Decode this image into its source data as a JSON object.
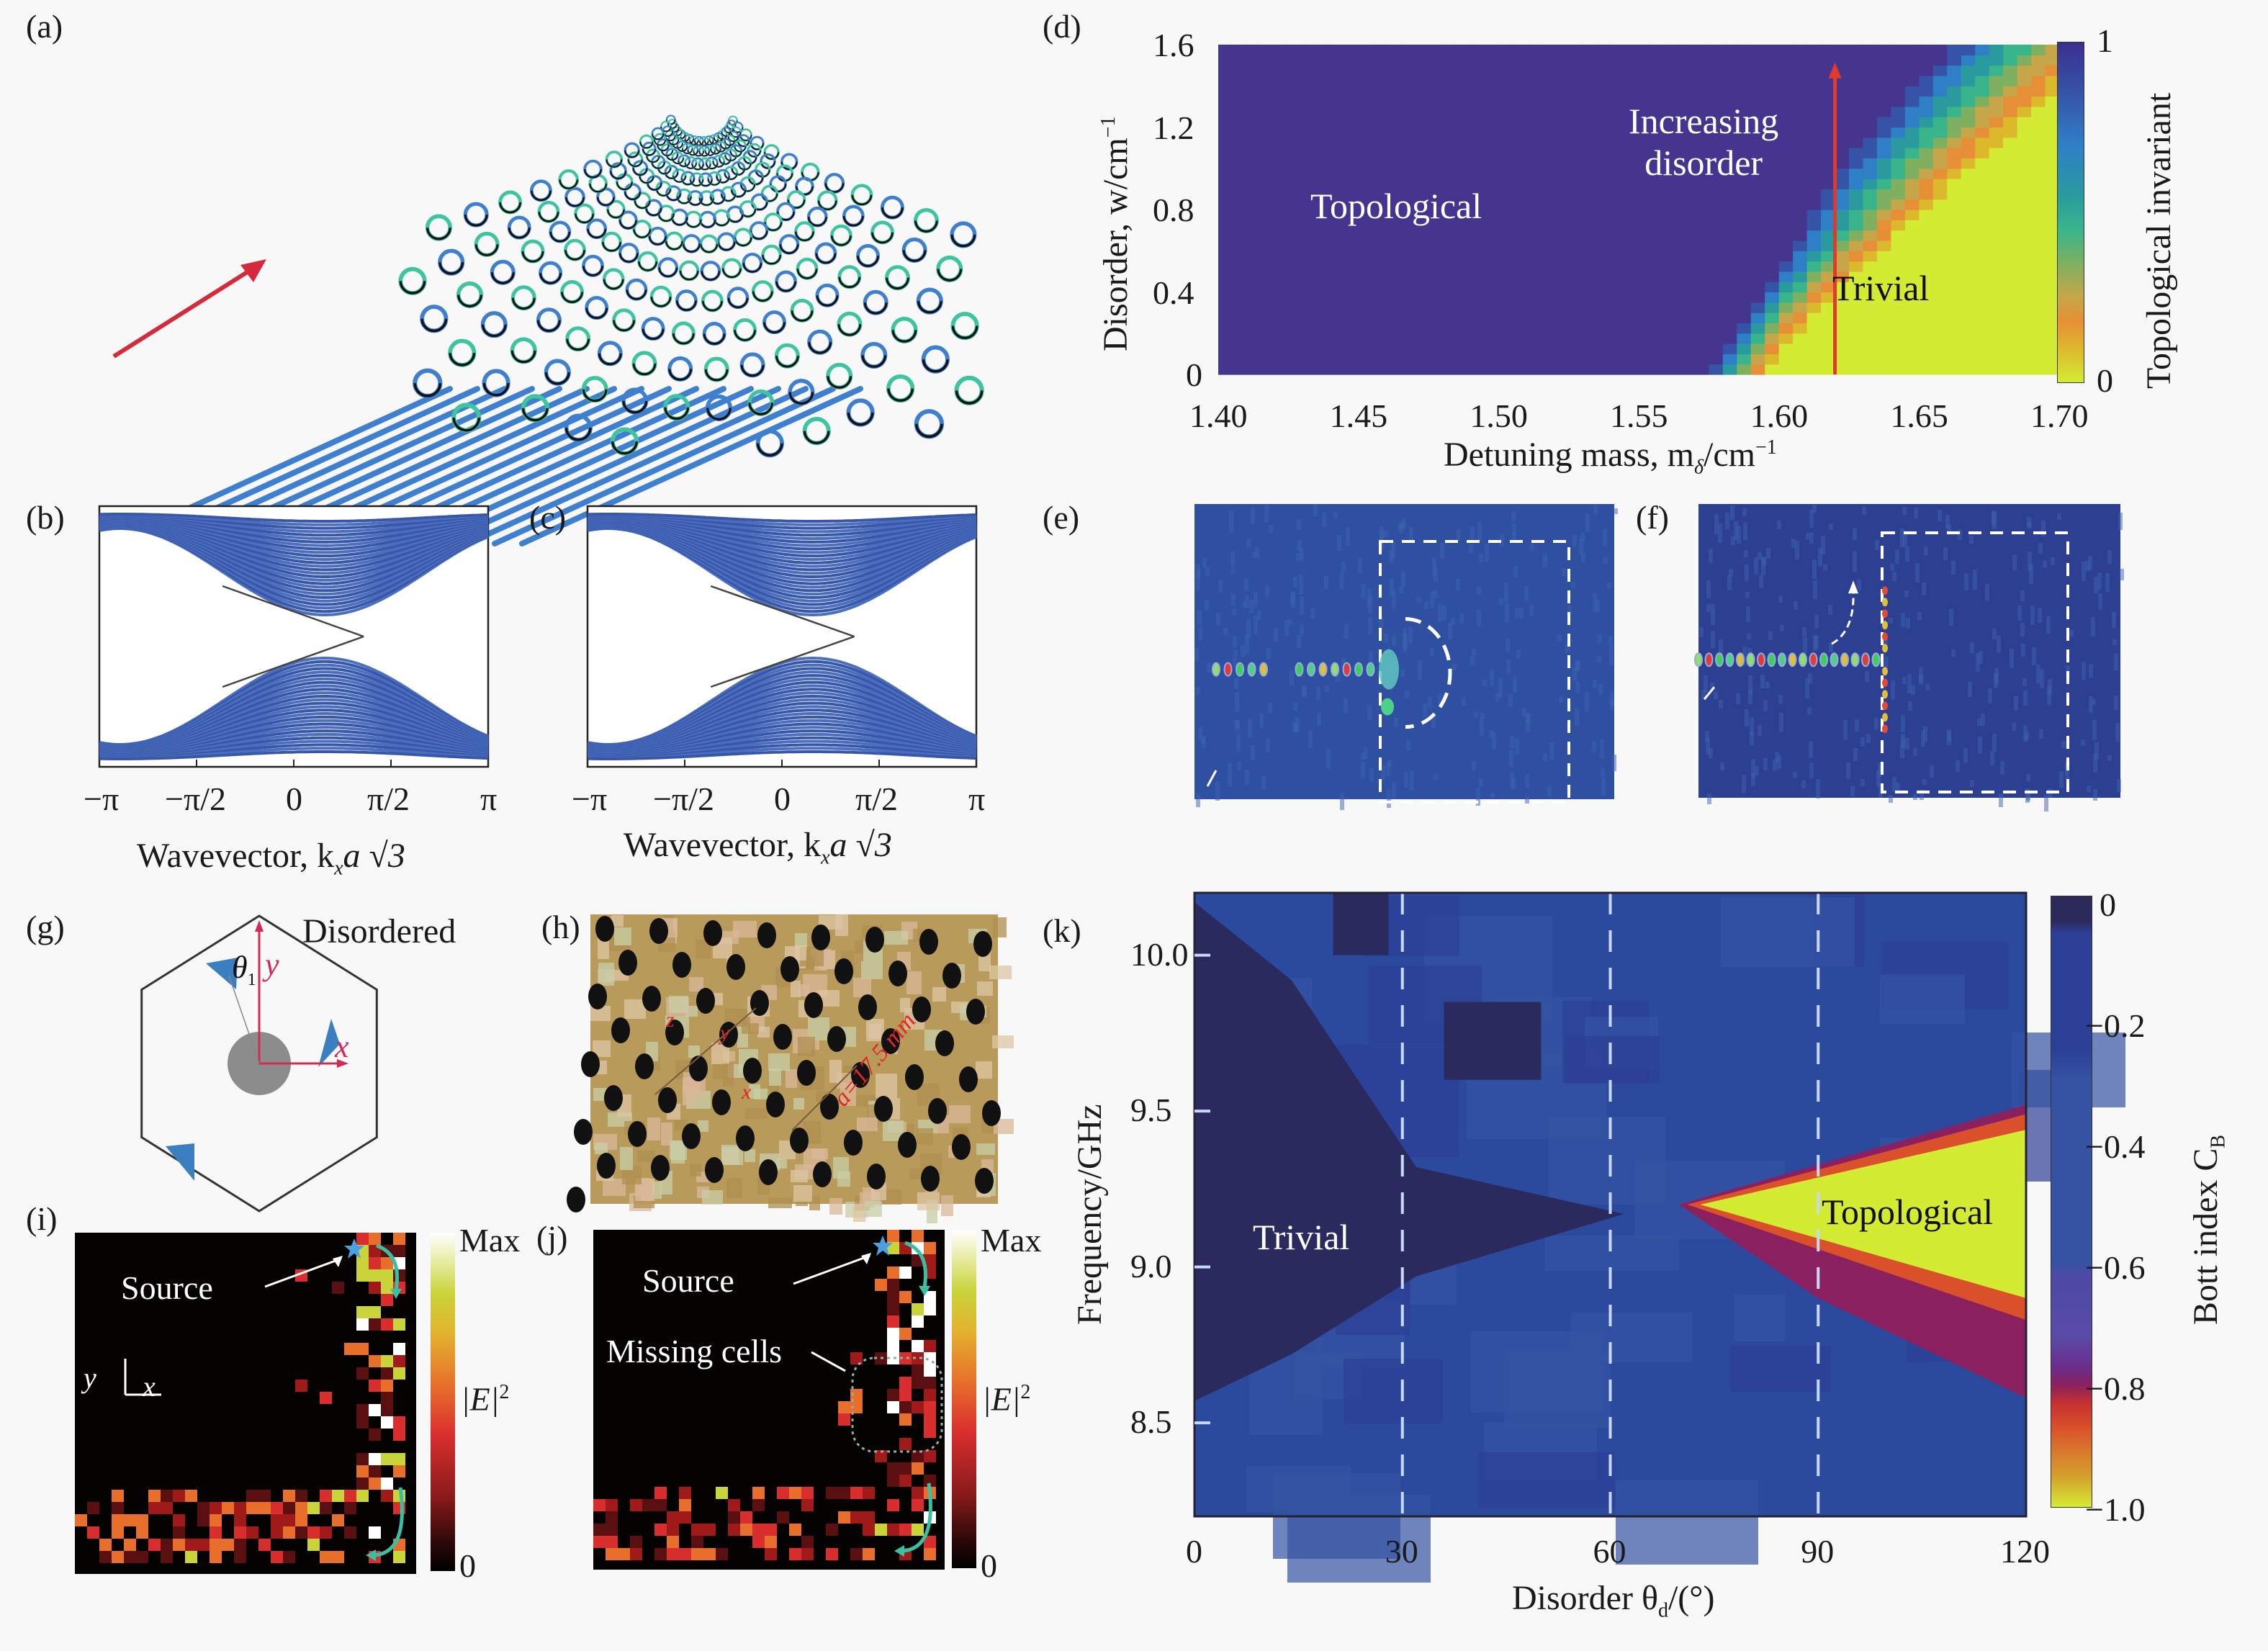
{
  "figure": {
    "panels": {
      "a": {
        "label": "(a)",
        "description": "3D helical waveguide array with red input arrow",
        "colors": {
          "helix_teal": "#3fc4a2",
          "helix_blue": "#3f7fd0",
          "input_highlight": "#e05a7a",
          "arrow": "#d42a3c"
        }
      },
      "b": {
        "label": "(b)",
        "xlabel": "Wavevector, k",
        "xlabel_sub": "x",
        "xlabel_tail": "a √3",
        "xticks": [
          "−π",
          "−π/2",
          "0",
          "π/2",
          "π"
        ]
      },
      "c": {
        "label": "(c)",
        "xlabel": "Wavevector, k",
        "xlabel_sub": "x",
        "xlabel_tail": "a √3",
        "xticks": [
          "−π",
          "−π/2",
          "0",
          "π/2",
          "π"
        ]
      },
      "d": {
        "label": "(d)",
        "xlabel": "Detuning mass, m",
        "xlabel_sub": "δ",
        "xlabel_tail": "/cm",
        "xlabel_sup": "−1",
        "ylabel": "Disorder, w/cm",
        "ylabel_sup": "−1",
        "xticks": [
          "1.40",
          "1.45",
          "1.50",
          "1.55",
          "1.60",
          "1.65",
          "1.70"
        ],
        "yticks": [
          "1.6",
          "1.2",
          "0.8",
          "0.4",
          "0"
        ],
        "colorbar": {
          "label": "Topological invariant",
          "max": "1",
          "min": "0"
        },
        "annotations": {
          "topological": "Topological",
          "increasing_1": "Increasing",
          "increasing_2": "disorder",
          "trivial": "Trivial"
        }
      },
      "e": {
        "label": "(e)"
      },
      "f": {
        "label": "(f)"
      },
      "g": {
        "label": "(g)",
        "title": "Disordered",
        "theta": "θ",
        "theta_sub": "1",
        "y_axis": "y",
        "x_axis": "x"
      },
      "h": {
        "label": "(h)",
        "axes": [
          "z",
          "y",
          "x"
        ],
        "lattice_const": "a=17.5 mm"
      },
      "i": {
        "label": "(i)",
        "source": "Source",
        "colorbar": {
          "max": "Max",
          "min": "0",
          "label": "|E|",
          "label_sup": "2"
        },
        "axes": {
          "y": "y",
          "x": "x"
        }
      },
      "j": {
        "label": "(j)",
        "source": "Source",
        "missing": "Missing cells",
        "colorbar": {
          "max": "Max",
          "min": "0",
          "label": "|E|",
          "label_sup": "2"
        }
      },
      "k": {
        "label": "(k)",
        "xlabel": "Disorder θ",
        "xlabel_sub": "d",
        "xlabel_tail": "/(°)",
        "ylabel": "Frequency/GHz",
        "xticks": [
          "0",
          "30",
          "60",
          "90",
          "120"
        ],
        "yticks": [
          "10.0",
          "9.5",
          "9.0",
          "8.5"
        ],
        "colorbar": {
          "label": "Bott index C",
          "label_sub": "B",
          "ticks": [
            "0",
            "−0.2",
            "−0.4",
            "−0.6",
            "−0.8",
            "−1.0"
          ]
        },
        "annotations": {
          "trivial": "Trivial",
          "topological": "Topological"
        }
      }
    }
  },
  "chart_data": [
    {
      "panel": "d",
      "type": "heatmap",
      "title": "",
      "xlabel": "Detuning mass, mδ/cm⁻¹",
      "ylabel": "Disorder, w/cm⁻¹",
      "xlim": [
        1.4,
        1.7
      ],
      "ylim": [
        0,
        1.6
      ],
      "colorbar": {
        "label": "Topological invariant",
        "range": [
          0,
          1
        ]
      },
      "boundary": {
        "description": "Topological (1) to trivial (0) transition; boundary mass vs disorder",
        "w": [
          0,
          0.2,
          0.4,
          0.6,
          0.8,
          1.0,
          1.2,
          1.4,
          1.6
        ],
        "m_transition": [
          1.585,
          1.595,
          1.607,
          1.62,
          1.633,
          1.645,
          1.66,
          1.675,
          1.69
        ],
        "width": [
          0.01,
          0.012,
          0.015,
          0.018,
          0.022,
          0.025,
          0.028,
          0.03,
          0.03
        ]
      },
      "arrow": {
        "m": 1.62,
        "w_from": 0.0,
        "w_to": 1.5,
        "label": "Increasing disorder"
      },
      "regions": [
        {
          "label": "Topological",
          "value": 1
        },
        {
          "label": "Trivial",
          "value": 0
        }
      ]
    },
    {
      "panel": "k",
      "type": "heatmap",
      "title": "",
      "xlabel": "Disorder θd/(°)",
      "ylabel": "Frequency/GHz",
      "xlim": [
        0,
        120
      ],
      "ylim": [
        8.2,
        10.2
      ],
      "dashed_lines_x": [
        30,
        60,
        90
      ],
      "colorbar": {
        "label": "Bott index C_B",
        "range": [
          -1.0,
          0
        ]
      },
      "regions": [
        {
          "label": "Trivial",
          "value": 0,
          "theta_range": [
            0,
            62
          ],
          "freq_center": 9.17,
          "freq_halfwidth_at_0": 0.55
        },
        {
          "label": "Topological",
          "value": -1.0,
          "theta_range": [
            73,
            120
          ],
          "freq_center": 9.2,
          "freq_halfwidth_at_120": 0.27
        }
      ],
      "background_value": -0.35
    },
    {
      "panel": "b",
      "type": "line",
      "xlabel": "Wavevector, kx a√3",
      "xlim": [
        -3.1416,
        3.1416
      ],
      "xticks": [
        "−π",
        "−π/2",
        "0",
        "π/2",
        "π"
      ],
      "edge_state_crossing_x": 1.13,
      "bulk_gap_min_x": 0.5
    },
    {
      "panel": "c",
      "type": "line",
      "xlabel": "Wavevector, kx a√3",
      "xlim": [
        -3.1416,
        3.1416
      ],
      "xticks": [
        "−π",
        "−π/2",
        "0",
        "π/2",
        "π"
      ],
      "edge_state_crossing_x": 1.17,
      "bulk_gap_min_x": 0.5
    }
  ],
  "colors": {
    "viridis_purple": "#45358f",
    "viridis_yellow": "#d4eb34",
    "band_blue": "#3956a8",
    "field_blue": "#2f4fa0",
    "k_bg": "#2b4a9e",
    "k_dark": "#2a2a5e",
    "accent_red": "#d42a3c"
  }
}
